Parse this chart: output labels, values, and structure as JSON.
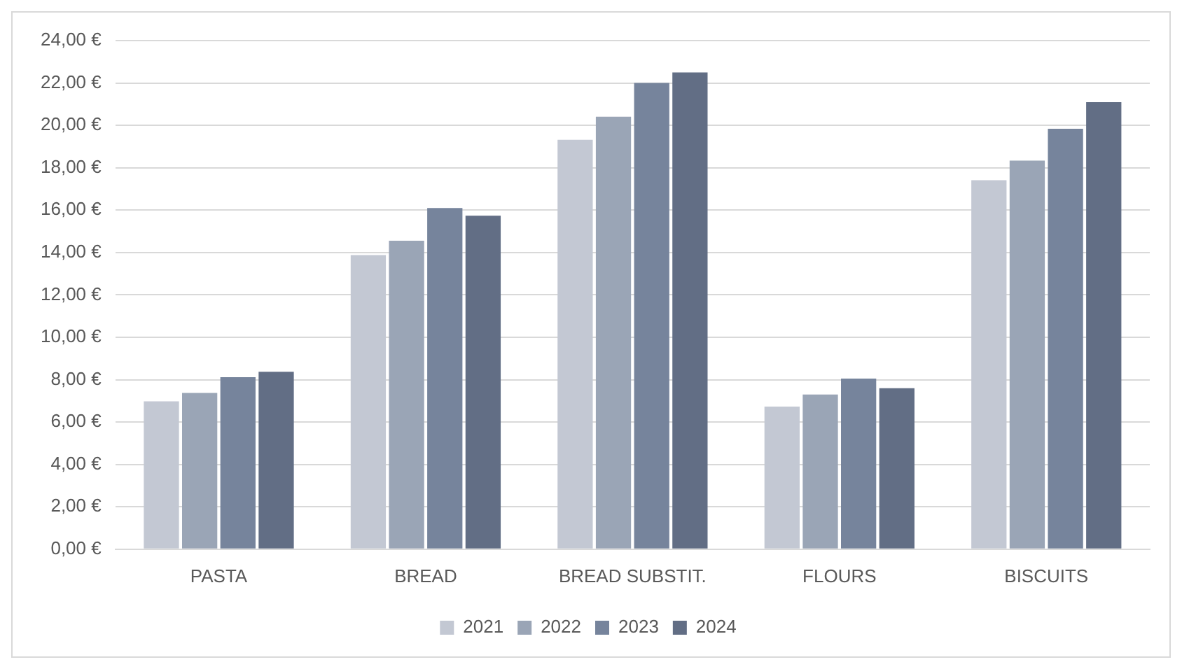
{
  "chart_data": {
    "type": "bar",
    "categories": [
      "PASTA",
      "BREAD",
      "BREAD SUBSTIT.",
      "FLOURS",
      "BISCUITS"
    ],
    "series": [
      {
        "name": "2021",
        "color": "#c3c8d3",
        "values": [
          6.98,
          13.88,
          19.32,
          6.73,
          17.41
        ]
      },
      {
        "name": "2022",
        "color": "#9aa5b6",
        "values": [
          7.37,
          14.56,
          20.41,
          7.3,
          18.34
        ]
      },
      {
        "name": "2023",
        "color": "#76849c",
        "values": [
          8.12,
          16.1,
          22.0,
          8.05,
          19.84
        ]
      },
      {
        "name": "2024",
        "color": "#626e85",
        "values": [
          8.37,
          15.74,
          22.5,
          7.6,
          21.09
        ]
      }
    ],
    "ylim": [
      0,
      24
    ],
    "yticks": [
      {
        "value": 0,
        "label": "0,00 €"
      },
      {
        "value": 2,
        "label": "2,00 €"
      },
      {
        "value": 4,
        "label": "4,00 €"
      },
      {
        "value": 6,
        "label": "6,00 €"
      },
      {
        "value": 8,
        "label": "8,00 €"
      },
      {
        "value": 10,
        "label": "10,00 €"
      },
      {
        "value": 12,
        "label": "12,00 €"
      },
      {
        "value": 14,
        "label": "14,00 €"
      },
      {
        "value": 16,
        "label": "16,00 €"
      },
      {
        "value": 18,
        "label": "18,00 €"
      },
      {
        "value": 20,
        "label": "20,00 €"
      },
      {
        "value": 22,
        "label": "22,00 €"
      },
      {
        "value": 24,
        "label": "24,00 €"
      }
    ],
    "grid": "y",
    "legend": "bottom"
  }
}
